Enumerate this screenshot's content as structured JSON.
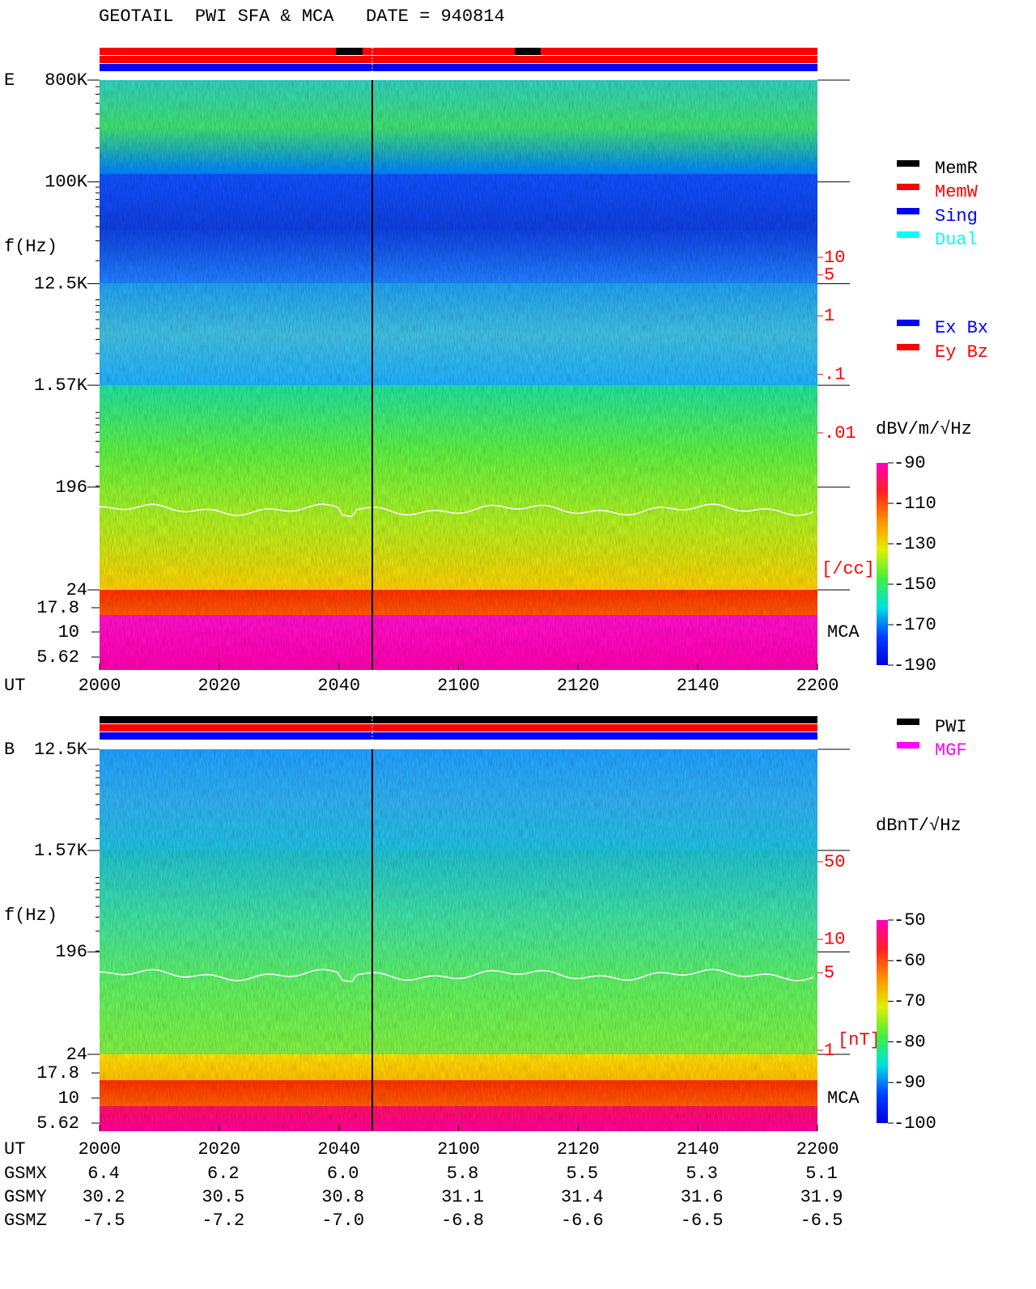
{
  "title": "GEOTAIL  PWI SFA & MCA   DATE = 940814",
  "chart_data": [
    {
      "type": "spectrogram",
      "panel_label": "E",
      "ylabel": "f(Hz)",
      "xlabel": "UT",
      "x_labels": [
        "2000",
        "2020",
        "2040",
        "2100",
        "2120",
        "2140",
        "2200"
      ],
      "log_y": true,
      "ylim": [
        24,
        800000
      ],
      "yticks": [
        {
          "value": 800000,
          "label": "800K"
        },
        {
          "value": 100000,
          "label": "100K"
        },
        {
          "value": 12500,
          "label": "12.5K"
        },
        {
          "value": 1570,
          "label": "1.57K"
        },
        196,
        24
      ],
      "mca_ticks": [
        17.8,
        10,
        5.62
      ],
      "mca_label": "MCA",
      "density_scale": {
        "label": "[/cc]",
        "ticks": [
          10,
          5,
          1,
          {
            "value": 0.1,
            "label": ".1"
          },
          {
            "value": 0.01,
            "label": ".01"
          }
        ]
      },
      "colorbar": {
        "label": "dBV/m/√Hz",
        "clim": [
          -190,
          -90
        ],
        "ticks": [
          -90,
          -110,
          -130,
          -150,
          -170,
          -190
        ]
      },
      "legends": [
        [
          {
            "name": "MemR",
            "color": "#000000"
          },
          {
            "name": "MemW",
            "color": "#ff0000"
          },
          {
            "name": "Sing",
            "color": "#0000ff"
          },
          {
            "name": "Dual",
            "color": "#00ffff"
          }
        ],
        [
          {
            "name": "Ex Bx",
            "color": "#0000ff"
          },
          {
            "name": "Ey Bz",
            "color": "#ff0000"
          }
        ]
      ]
    },
    {
      "type": "spectrogram",
      "panel_label": "B",
      "ylabel": "f(Hz)",
      "xlabel": "UT",
      "x_labels": [
        "2000",
        "2020",
        "2040",
        "2100",
        "2120",
        "2140",
        "2200"
      ],
      "log_y": true,
      "ylim": [
        24,
        12500
      ],
      "yticks": [
        {
          "value": 12500,
          "label": "12.5K"
        },
        {
          "value": 1570,
          "label": "1.57K"
        },
        196,
        24
      ],
      "mca_ticks": [
        17.8,
        10,
        5.62
      ],
      "mca_label": "MCA",
      "density_scale": {
        "label": "[nT]",
        "ticks": [
          50,
          10,
          5,
          1
        ]
      },
      "colorbar": {
        "label": "dBnT/√Hz",
        "clim": [
          -100,
          -50
        ],
        "ticks": [
          -50,
          -60,
          -70,
          -80,
          -90,
          -100
        ]
      },
      "legends": [
        [
          {
            "name": "PWI",
            "color": "#000000"
          },
          {
            "name": "MGF",
            "color": "#ff00ff"
          }
        ]
      ]
    }
  ],
  "orbit_table": {
    "rows": [
      [
        "GSMX",
        "6.4",
        "6.2",
        "6.0",
        "5.8",
        "5.5",
        "5.3",
        "5.1"
      ],
      [
        "GSMY",
        "30.2",
        "30.5",
        "30.8",
        "31.1",
        "31.4",
        "31.6",
        "31.9"
      ],
      [
        "GSMZ",
        "-7.5",
        "-7.2",
        "-7.0",
        "-6.8",
        "-6.6",
        "-6.5",
        "-6.5"
      ]
    ]
  }
}
